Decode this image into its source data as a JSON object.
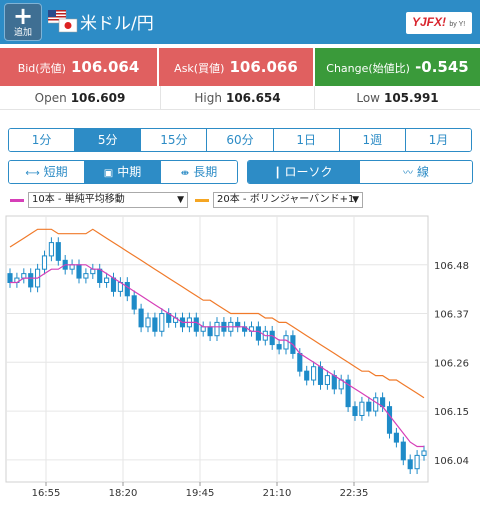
{
  "header": {
    "add_label": "追加",
    "title": "米ドル/円",
    "logo_text": "YJFX!",
    "logo_sub": "by Y!"
  },
  "quotes": {
    "bid_key": "Bid(売値)",
    "bid_value": "106.064",
    "ask_key": "Ask(買値)",
    "ask_value": "106.066",
    "change_key": "Change(始値比)",
    "change_value": "-0.545"
  },
  "stats": {
    "open_key": "Open",
    "open_value": "106.609",
    "high_key": "High",
    "high_value": "106.654",
    "low_key": "Low",
    "low_value": "105.991"
  },
  "timeframes": [
    "1分",
    "5分",
    "15分",
    "60分",
    "1日",
    "1週",
    "1月"
  ],
  "timeframe_selected": "5分",
  "term": {
    "short": "短期",
    "mid": "中期",
    "long": "長期",
    "selected": "中期"
  },
  "chart_type": {
    "candle": "ローソク",
    "line": "線",
    "selected": "ローソク"
  },
  "indicators": {
    "ma_label": "10本 - 単純平均移動",
    "ma_color": "#d63fb8",
    "bb_label": "20本 - ボリンジャーバンド+1",
    "bb_color": "#f5a623"
  },
  "colors": {
    "header": "#2d8cc6",
    "bid_ask": "#e06060",
    "change": "#3a9a3a",
    "candle": "#1e8bc8",
    "ma": "#d63fb8",
    "bb": "#f07a2a"
  },
  "chart_data": {
    "type": "candlestick",
    "x_ticks": [
      "16:55",
      "18:20",
      "19:45",
      "21:10",
      "22:35"
    ],
    "y_ticks": [
      106.48,
      106.37,
      106.26,
      106.15,
      106.04
    ],
    "ylim": [
      105.99,
      106.59
    ],
    "close": [
      106.44,
      106.45,
      106.46,
      106.43,
      106.47,
      106.5,
      106.53,
      106.49,
      106.47,
      106.48,
      106.45,
      106.46,
      106.47,
      106.44,
      106.45,
      106.42,
      106.44,
      106.41,
      106.38,
      106.34,
      106.36,
      106.33,
      106.37,
      106.35,
      106.36,
      106.34,
      106.36,
      106.33,
      106.34,
      106.32,
      106.35,
      106.33,
      106.35,
      106.34,
      106.33,
      106.34,
      106.31,
      106.33,
      106.3,
      106.29,
      106.32,
      106.28,
      106.24,
      106.22,
      106.25,
      106.21,
      106.23,
      106.2,
      106.22,
      106.16,
      106.14,
      106.17,
      106.15,
      106.18,
      106.16,
      106.1,
      106.08,
      106.04,
      106.02,
      106.05,
      106.06
    ],
    "ma": [
      106.44,
      106.44,
      106.45,
      106.45,
      106.45,
      106.46,
      106.47,
      106.47,
      106.48,
      106.48,
      106.48,
      106.48,
      106.47,
      106.47,
      106.46,
      106.45,
      106.44,
      106.43,
      106.42,
      106.41,
      106.4,
      106.39,
      106.38,
      106.37,
      106.36,
      106.35,
      106.35,
      106.35,
      106.34,
      106.34,
      106.34,
      106.34,
      106.34,
      106.34,
      106.34,
      106.33,
      106.33,
      106.32,
      106.32,
      106.31,
      106.31,
      106.3,
      106.28,
      106.27,
      106.26,
      106.25,
      106.24,
      106.23,
      106.22,
      106.21,
      106.2,
      106.19,
      106.18,
      106.17,
      106.16,
      106.14,
      106.12,
      106.1,
      106.08,
      106.07,
      106.07
    ],
    "bb_upper": [
      106.52,
      106.53,
      106.54,
      106.55,
      106.56,
      106.56,
      106.56,
      106.55,
      106.55,
      106.55,
      106.55,
      106.55,
      106.56,
      106.55,
      106.54,
      106.53,
      106.52,
      106.51,
      106.5,
      106.49,
      106.48,
      106.47,
      106.46,
      106.45,
      106.44,
      106.43,
      106.42,
      106.41,
      106.4,
      106.4,
      106.39,
      106.38,
      106.37,
      106.37,
      106.37,
      106.37,
      106.37,
      106.36,
      106.36,
      106.35,
      106.35,
      106.34,
      106.33,
      106.32,
      106.31,
      106.3,
      106.29,
      106.28,
      106.27,
      106.26,
      106.25,
      106.24,
      106.24,
      106.23,
      106.23,
      106.22,
      106.22,
      106.21,
      106.2,
      106.19,
      106.18
    ]
  }
}
